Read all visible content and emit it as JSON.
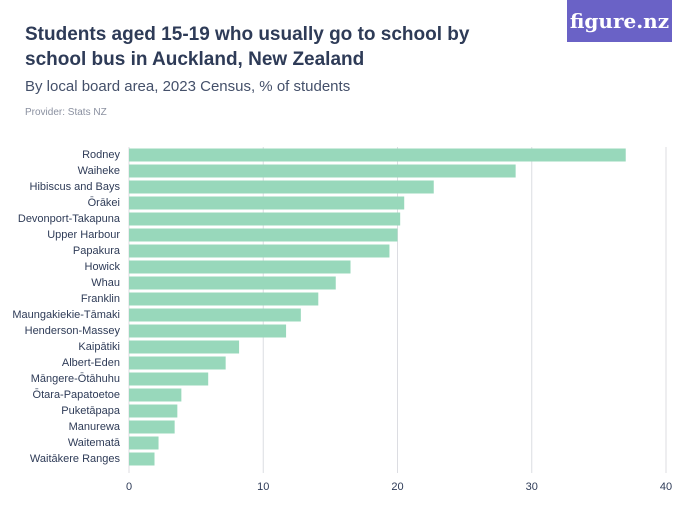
{
  "chart_data": {
    "type": "hbar",
    "title": "Students aged 15-19 who usually go to school by school bus in Auckland, New Zealand",
    "subtitle": "By local board area, 2023 Census, % of students",
    "provider": "Provider: Stats NZ",
    "logo": "figure.nz",
    "categories": [
      "Rodney",
      "Waiheke",
      "Hibiscus and Bays",
      "Ōrākei",
      "Devonport-Takapuna",
      "Upper Harbour",
      "Papakura",
      "Howick",
      "Whau",
      "Franklin",
      "Maungakiekie-Tāmaki",
      "Henderson-Massey",
      "Kaipātiki",
      "Albert-Eden",
      "Māngere-Ōtāhuhu",
      "Ōtara-Papatoetoe",
      "Puketāpapa",
      "Manurewa",
      "Waitematā",
      "Waitākere Ranges"
    ],
    "values": [
      37.0,
      28.8,
      22.7,
      20.5,
      20.2,
      20.0,
      19.4,
      16.5,
      15.4,
      14.1,
      12.8,
      11.7,
      8.2,
      7.2,
      5.9,
      3.9,
      3.6,
      3.4,
      2.2,
      1.9
    ],
    "color": "#98d8bb",
    "xlim": [
      0,
      40
    ],
    "xticks": [
      0,
      10,
      20,
      30,
      40
    ],
    "grid": true
  }
}
